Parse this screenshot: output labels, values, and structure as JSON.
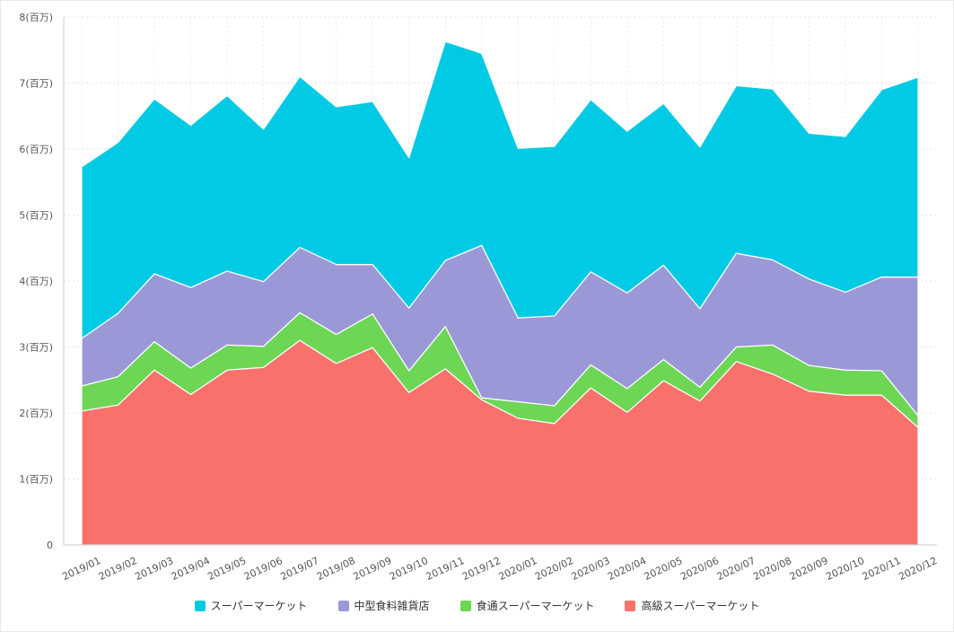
{
  "chart_data": {
    "type": "area",
    "stacked": true,
    "categories": [
      "2019/01",
      "2019/02",
      "2019/03",
      "2019/04",
      "2019/05",
      "2019/06",
      "2019/07",
      "2019/08",
      "2019/09",
      "2019/10",
      "2019/11",
      "2019/12",
      "2020/01",
      "2020/02",
      "2020/03",
      "2020/04",
      "2020/05",
      "2020/06",
      "2020/07",
      "2020/08",
      "2020/09",
      "2020/10",
      "2020/11",
      "2020/12"
    ],
    "series": [
      {
        "name": "高級スーパーマーケット",
        "color": "#f9716b",
        "values": [
          2.03,
          2.12,
          2.65,
          2.28,
          2.65,
          2.69,
          3.1,
          2.75,
          2.99,
          2.31,
          2.67,
          2.2,
          1.92,
          1.84,
          2.38,
          2.01,
          2.49,
          2.18,
          2.78,
          2.59,
          2.33,
          2.27,
          2.27,
          1.78
        ]
      },
      {
        "name": "食通スーパーマーケット",
        "color": "#6dd655",
        "values": [
          0.38,
          0.43,
          0.43,
          0.4,
          0.38,
          0.32,
          0.42,
          0.44,
          0.51,
          0.33,
          0.64,
          0.03,
          0.25,
          0.27,
          0.35,
          0.36,
          0.32,
          0.21,
          0.22,
          0.44,
          0.39,
          0.38,
          0.37,
          0.18
        ]
      },
      {
        "name": "中型食料雑貨店",
        "color": "#9b98d7",
        "values": [
          0.72,
          0.96,
          1.03,
          1.22,
          1.12,
          0.98,
          0.99,
          1.06,
          0.75,
          0.95,
          1.0,
          2.31,
          1.27,
          1.36,
          1.41,
          1.45,
          1.43,
          1.19,
          1.42,
          1.29,
          1.31,
          1.18,
          1.42,
          2.1
        ]
      },
      {
        "name": "スーパーマーケット",
        "color": "#00cae4",
        "values": [
          2.6,
          2.59,
          2.65,
          2.46,
          2.66,
          2.31,
          2.59,
          2.39,
          2.47,
          2.28,
          3.32,
          2.91,
          2.57,
          2.57,
          2.61,
          2.45,
          2.45,
          2.45,
          2.54,
          2.59,
          2.21,
          2.36,
          2.84,
          3.03
        ]
      }
    ],
    "y_ticks": [
      "0",
      "1(百万)",
      "2(百万)",
      "3(百万)",
      "4(百万)",
      "5(百万)",
      "6(百万)",
      "7(百万)",
      "8(百万)"
    ],
    "ylim": [
      0,
      8
    ],
    "grid": true,
    "legend_position": "bottom",
    "legend_order": [
      "スーパーマーケット",
      "中型食料雑貨店",
      "食通スーパーマーケット",
      "高級スーパーマーケット"
    ]
  }
}
